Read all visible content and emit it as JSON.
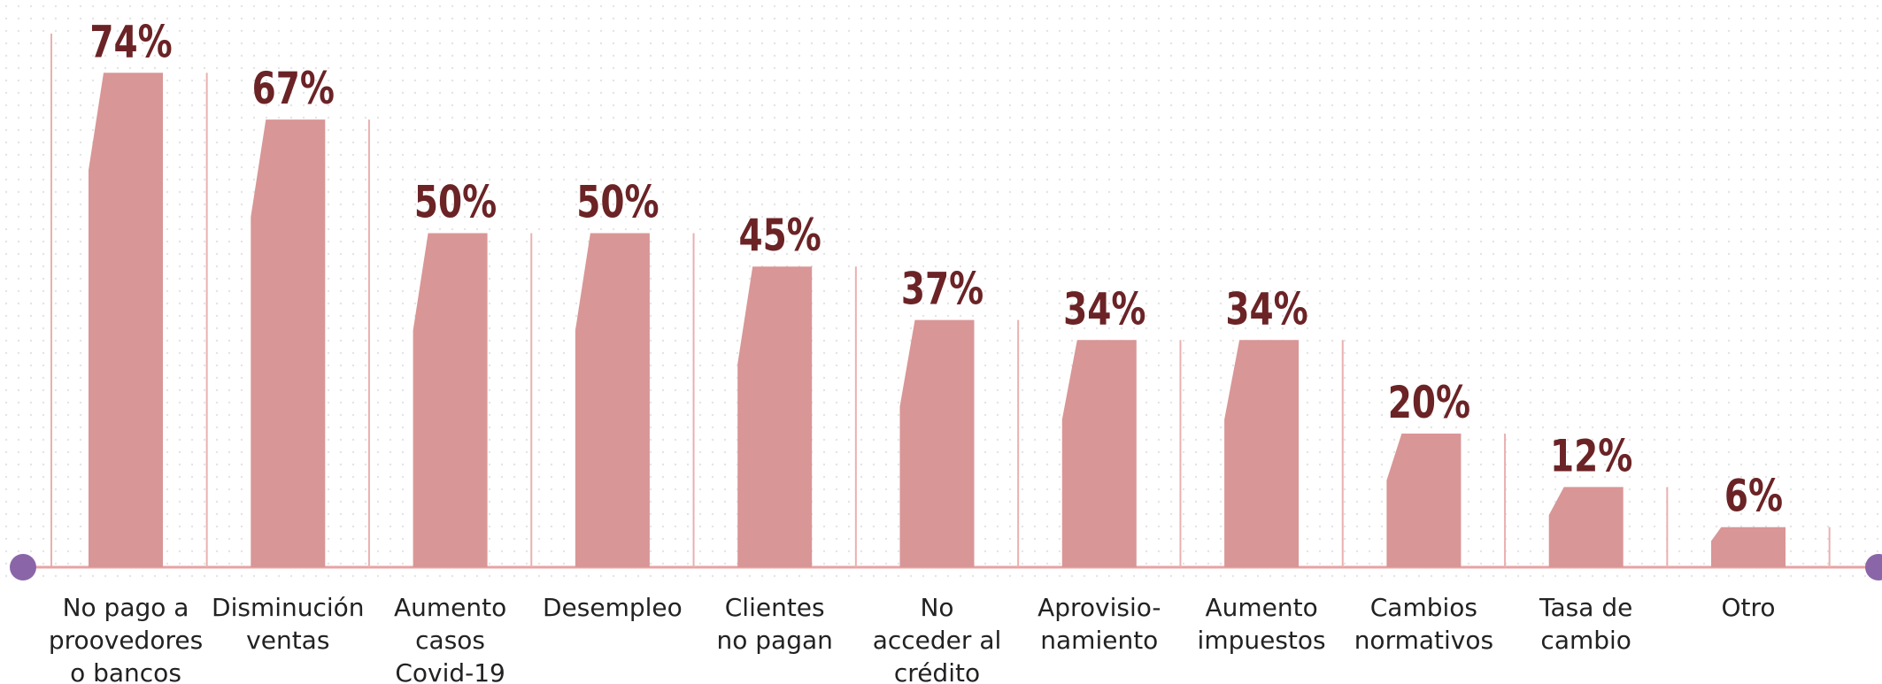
{
  "chart_data": {
    "type": "bar",
    "categories": [
      "No pago a\nproovedores\no bancos",
      "Disminución\nventas",
      "Aumento\ncasos\nCovid-19",
      "Desempleo",
      "Clientes\nno pagan",
      "No\nacceder al\ncrédito",
      "Aprovisio-\nnamiento",
      "Aumento\nimpuestos",
      "Cambios\nnormativos",
      "Tasa de\ncambio",
      "Otro"
    ],
    "values": [
      74,
      67,
      50,
      50,
      45,
      37,
      34,
      34,
      20,
      12,
      6
    ],
    "value_labels": [
      "74%",
      "67%",
      "50%",
      "50%",
      "45%",
      "37%",
      "34%",
      "34%",
      "20%",
      "12%",
      "6%"
    ],
    "color": "#d99696",
    "label_color": "#6b2326"
  }
}
